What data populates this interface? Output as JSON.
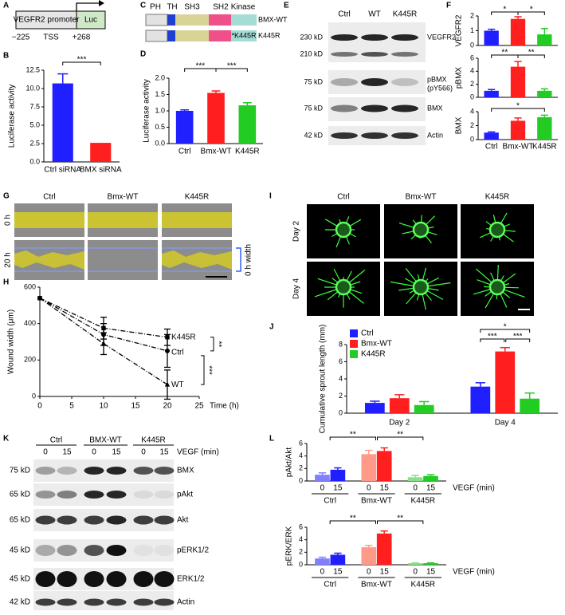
{
  "panel_labels": [
    "A",
    "B",
    "C",
    "D",
    "E",
    "F",
    "G",
    "H",
    "I",
    "J",
    "K",
    "L"
  ],
  "promoter": {
    "promoter": "VEGFR2 promoter",
    "reporter": "Luc",
    "start": "−225",
    "tss": "TSS",
    "end": "+268"
  },
  "domains": {
    "names": [
      "PH",
      "TH",
      "SH3",
      "SH2",
      "Kinase"
    ],
    "constructs": [
      "BMX-WT",
      "K445R"
    ],
    "mutation": "*K445R"
  },
  "blot_e": {
    "lanes": [
      "Ctrl",
      "WT",
      "K445R"
    ],
    "sizes": [
      "230 kD",
      "210 kD",
      "75 kD",
      "75 kD",
      "42 kD"
    ],
    "proteins": [
      "VEGFR2",
      "pBMX",
      "BMX",
      "Actin"
    ],
    "site": "(pY566)"
  },
  "wound": {
    "conditions": [
      "Ctrl",
      "Bmx-WT",
      "K445R"
    ],
    "times": [
      "0 h",
      "20 h"
    ],
    "scale": "0 h width"
  },
  "sprouting": {
    "conditions": [
      "Ctrl",
      "Bmx-WT",
      "K445R"
    ],
    "days": [
      "Day 2",
      "Day 4"
    ]
  },
  "blot_k": {
    "groups": [
      "Ctrl",
      "BMX-WT",
      "K445R"
    ],
    "times": [
      "0",
      "15",
      "0",
      "15",
      "0",
      "15"
    ],
    "treatment": "VEGF (min)",
    "sizes": [
      "75 kD",
      "65 kD",
      "65 kD",
      "45 kD",
      "45 kD",
      "42 kD"
    ],
    "proteins": [
      "BMX",
      "pAkt",
      "Akt",
      "pERK1/2",
      "ERK1/2",
      "Actin"
    ]
  },
  "chart_data": [
    {
      "type": "bar",
      "y_label": "Luciferase activity",
      "categories": [
        "Ctrl siRNA",
        "BMX siRNA"
      ],
      "values": [
        10.7,
        2.6
      ],
      "errors": [
        1.3,
        0
      ],
      "colors": [
        "#1f1fff",
        "#ff1f1f"
      ],
      "ylim": [
        0,
        12.5
      ],
      "yticks": [
        {
          "value": 0,
          "label": "0.0"
        },
        2.5,
        {
          "value": 5,
          "label": "5.0"
        },
        7.5,
        {
          "value": 10,
          "label": "10.0"
        },
        12.5
      ],
      "annotations": [
        "***"
      ]
    },
    {
      "type": "bar",
      "y_label": "Luciferase activity",
      "categories": [
        "Ctrl",
        "Bmx-WT",
        "K445R"
      ],
      "values": [
        1.0,
        1.55,
        1.17
      ],
      "errors": [
        0.03,
        0.06,
        0.08
      ],
      "colors": [
        "#1f1fff",
        "#ff1f1f",
        "#22cc22"
      ],
      "ylim": [
        0,
        2
      ],
      "yticks": [
        {
          "value": 0,
          "label": "0.0"
        },
        0.5,
        {
          "value": 1,
          "label": "1.0"
        },
        1.5,
        {
          "value": 2,
          "label": "2.0"
        }
      ],
      "annotations": [
        "***",
        "***"
      ]
    },
    {
      "type": "bar",
      "y_label": "VEGFR2",
      "categories": [
        null,
        null,
        null
      ],
      "values": [
        1.0,
        1.8,
        0.75
      ],
      "errors": [
        0.1,
        0.15,
        0.4
      ],
      "colors": [
        "#1f1fff",
        "#ff1f1f",
        "#22cc22"
      ],
      "ylim": [
        0,
        2
      ],
      "yticks": [
        0,
        1,
        2
      ],
      "annotations": [
        "*",
        "*"
      ]
    },
    {
      "type": "bar",
      "y_label": "pBMX",
      "categories": [
        null,
        null,
        null
      ],
      "values": [
        1.0,
        4.7,
        1.0
      ],
      "errors": [
        0.2,
        0.8,
        0.3
      ],
      "colors": [
        "#1f1fff",
        "#ff1f1f",
        "#22cc22"
      ],
      "ylim": [
        0,
        6
      ],
      "yticks": [
        0,
        2,
        4,
        6
      ],
      "annotations": [
        "**",
        "**"
      ]
    },
    {
      "type": "bar",
      "y_label": "BMX",
      "categories": [
        "Ctrl",
        "Bmx-WT",
        "K445R"
      ],
      "values": [
        1.0,
        2.7,
        3.2
      ],
      "errors": [
        0.1,
        0.4,
        0.3
      ],
      "colors": [
        "#1f1fff",
        "#ff1f1f",
        "#22cc22"
      ],
      "ylim": [
        0,
        4
      ],
      "yticks": [
        0,
        2,
        4
      ],
      "annotations": [
        "*"
      ]
    },
    {
      "type": "line",
      "x_label": "Time (h)",
      "y_label": "Wound width (μm)",
      "x": [
        0,
        10,
        20
      ],
      "series": [
        {
          "name": "K445R",
          "color": "#000000",
          "marker": "square",
          "values": [
            540,
            375,
            325
          ],
          "errors": [
            0,
            60,
            45
          ]
        },
        {
          "name": "Ctrl",
          "color": "#000000",
          "marker": "circle",
          "values": [
            540,
            340,
            250
          ],
          "errors": [
            0,
            60,
            90
          ]
        },
        {
          "name": "WT",
          "color": "#000000",
          "marker": "triangle",
          "values": [
            540,
            290,
            65
          ],
          "errors": [
            0,
            60,
            80
          ]
        }
      ],
      "xlim": [
        0,
        25
      ],
      "xticks": [
        0,
        5,
        10,
        15,
        20,
        25
      ],
      "ylim": [
        0,
        600
      ],
      "yticks": [
        0,
        200,
        400,
        600
      ],
      "annotations": [
        "**",
        "***"
      ]
    },
    {
      "type": "grouped_bar",
      "y_label": "Cumulative sprout length (mm)",
      "categories": [
        "Day 2",
        "Day 4"
      ],
      "legend": "top-left",
      "series": [
        {
          "name": "Ctrl",
          "color": "#1f1fff",
          "values": [
            1.2,
            3.1
          ],
          "errors": [
            0.2,
            0.45
          ]
        },
        {
          "name": "Bmx-WT",
          "color": "#ff1f1f",
          "values": [
            1.75,
            7.2
          ],
          "errors": [
            0.4,
            0.45
          ]
        },
        {
          "name": "K445R",
          "color": "#22cc22",
          "values": [
            0.95,
            1.7
          ],
          "errors": [
            0.4,
            0.65
          ]
        }
      ],
      "ylim": [
        0,
        8
      ],
      "yticks": [
        0,
        2,
        4,
        6,
        8
      ],
      "annotations": [
        "*",
        "***",
        "***"
      ]
    },
    {
      "type": "paired_bar",
      "y_label": "pAkt/Akt",
      "x_label": "VEGF (min)",
      "categories": [
        "0",
        "15",
        "0",
        "15",
        "0",
        "15"
      ],
      "groups": [
        "Ctrl",
        "Bmx-WT",
        "K445R"
      ],
      "values": [
        1.0,
        1.8,
        4.3,
        4.8,
        0.6,
        0.8
      ],
      "errors": [
        0.3,
        0.3,
        0.6,
        0.5,
        0.3,
        0.2
      ],
      "colors": [
        "#8080ff",
        "#1f1fff",
        "#ff9a88",
        "#ff1f1f",
        "#88e088",
        "#22cc22"
      ],
      "ylim": [
        0,
        6
      ],
      "yticks": [
        0,
        2,
        4,
        6
      ],
      "annotations": [
        "**",
        "**"
      ]
    },
    {
      "type": "paired_bar",
      "y_label": "pERK/ERK",
      "x_label": "VEGF (min)",
      "categories": [
        "0",
        "15",
        "0",
        "15",
        "0",
        "15"
      ],
      "groups": [
        "Ctrl",
        "Bmx-WT",
        "K445R"
      ],
      "values": [
        1.0,
        1.6,
        2.8,
        5.0,
        0.25,
        0.25
      ],
      "errors": [
        0.2,
        0.25,
        0.3,
        0.4,
        0.05,
        0.05
      ],
      "colors": [
        "#8080ff",
        "#1f1fff",
        "#ff9a88",
        "#ff1f1f",
        "#88e088",
        "#22cc22"
      ],
      "ylim": [
        0,
        6
      ],
      "yticks": [
        0,
        2,
        4,
        6
      ],
      "annotations": [
        "**",
        "**"
      ]
    }
  ]
}
